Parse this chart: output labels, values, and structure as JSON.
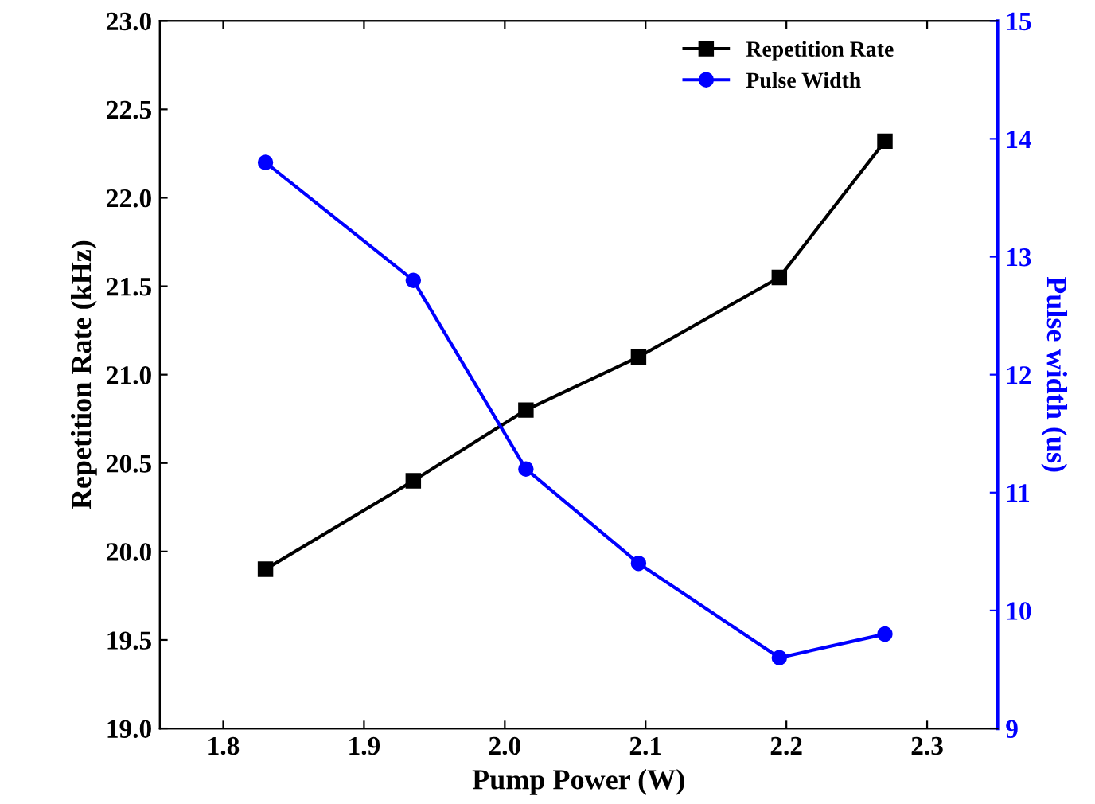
{
  "chart_data": {
    "type": "line",
    "xlabel": "Pump Power (W)",
    "ylabel": "Repetition Rate (kHz)",
    "y2label": "Pulse width (us)",
    "xlim": [
      1.755,
      2.35
    ],
    "xticks": [
      1.8,
      1.9,
      {
        "value": 2,
        "label": "2.0"
      },
      2.1,
      2.2,
      2.3
    ],
    "ylim": [
      19,
      23
    ],
    "yticks": [
      {
        "value": 19,
        "label": "19.0"
      },
      19.5,
      {
        "value": 20,
        "label": "20.0"
      },
      20.5,
      {
        "value": 21,
        "label": "21.0"
      },
      21.5,
      {
        "value": 22,
        "label": "22.0"
      },
      22.5,
      {
        "value": 23,
        "label": "23.0"
      }
    ],
    "y2lim": [
      9,
      15
    ],
    "y2ticks": [
      9,
      10,
      11,
      12,
      13,
      14,
      15
    ],
    "x": [
      1.83,
      1.935,
      2.015,
      2.095,
      2.195,
      2.27
    ],
    "series": [
      {
        "name": "Repetition Rate",
        "color": "#000000",
        "marker": "square",
        "values": [
          19.9,
          20.4,
          20.8,
          21.1,
          21.55,
          22.32
        ]
      },
      {
        "name": "Pulse Width",
        "color": "#0000ff",
        "marker": "circle",
        "axis": "y2",
        "values": [
          13.8,
          12.8,
          11.2,
          10.4,
          9.6,
          9.8
        ]
      }
    ],
    "legend": "top right",
    "grid": false,
    "line_style": "solid"
  }
}
